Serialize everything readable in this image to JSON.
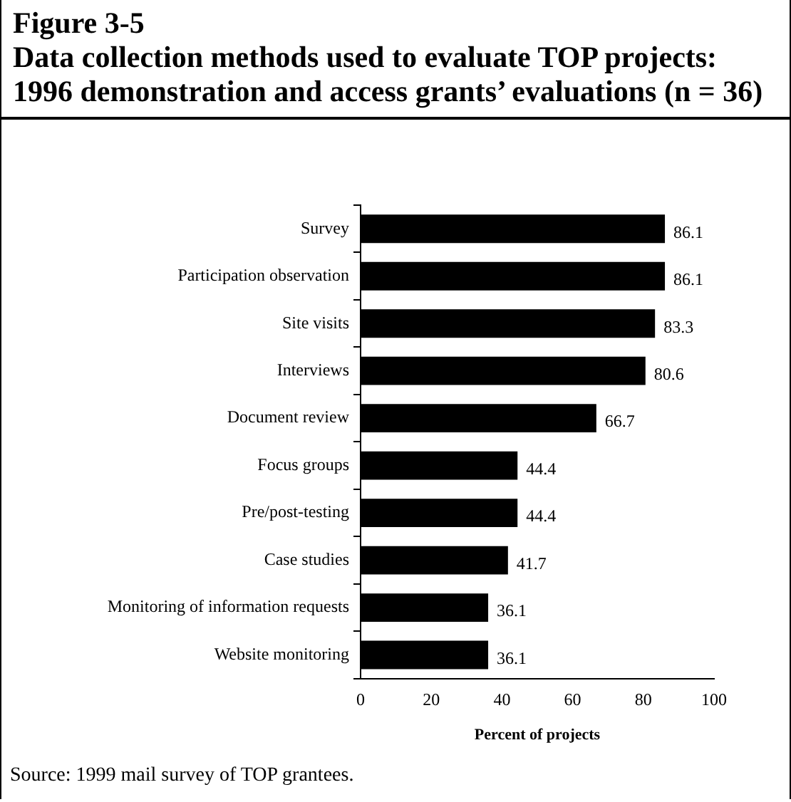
{
  "chart_data": {
    "type": "bar",
    "orientation": "horizontal",
    "title": "Figure 3-5",
    "subtitle": "Data collection methods used to evaluate TOP projects: 1996 demonstration and access grants’ evaluations (n = 36)",
    "categories": [
      "Survey",
      "Participation observation",
      "Site visits",
      "Interviews",
      "Document review",
      "Focus groups",
      "Pre/post-testing",
      "Case studies",
      "Monitoring of information requests",
      "Website monitoring"
    ],
    "values": [
      86.1,
      86.1,
      83.3,
      80.6,
      66.7,
      44.4,
      44.4,
      41.7,
      36.1,
      36.1
    ],
    "color": "#000000",
    "xlim": [
      0,
      100
    ],
    "xticks": [
      0,
      20,
      40,
      60,
      80,
      100
    ],
    "xlabel": "Percent of projects",
    "grid": false,
    "legend": false,
    "data_labels": true,
    "annotations": [
      "Source:  1999 mail survey of TOP grantees."
    ]
  }
}
